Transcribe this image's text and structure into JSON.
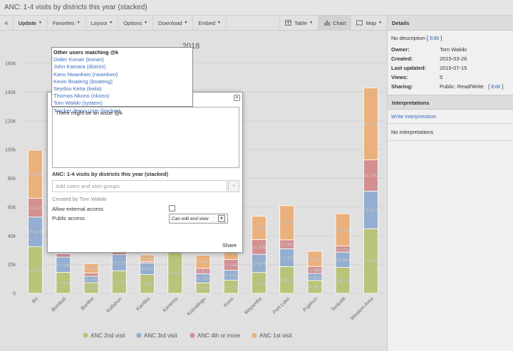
{
  "window": {
    "title": "ANC: 1-4 visits by districts this year (stacked)"
  },
  "toolbar": {
    "collapse_icon": "double-chevron-left-icon",
    "update": "Update",
    "favorites": "Favorites",
    "layout": "Layout",
    "options": "Options",
    "download": "Download",
    "embed": "Embed",
    "table": "Table",
    "chart": "Chart",
    "map": "Map"
  },
  "sidebar": {
    "details_header": "Details",
    "no_description": "No description [",
    "edit_label": "Edit",
    "close_bracket": "]",
    "owner_label": "Owner:",
    "owner_value": "Tom Wakiki",
    "created_label": "Created:",
    "created_value": "2015-03-26",
    "updated_label": "Last updated:",
    "updated_value": "2015-07-15",
    "views_label": "Views:",
    "views_value": "5",
    "sharing_label": "Sharing:",
    "sharing_value": "Public: Read/Write",
    "sharing_open": "[",
    "sharing_edit": "Edit",
    "sharing_close": "]",
    "interpretations_header": "Interpretations",
    "write_interpretation": "Write interpretation",
    "no_interpretations": "No interpretations"
  },
  "dialog": {
    "textarea_value": "There might be an issue @k",
    "title": "ANC: 1-4 visits by districts this year (stacked)",
    "add_users_placeholder": "Add users and user groups",
    "plus": "+",
    "created_by": "Created by Tom Wakiki",
    "allow_external": "Allow external access",
    "public_access": "Public access",
    "public_access_value": "Can edit and view",
    "share": "Share",
    "close": "×"
  },
  "mention": {
    "header": "Other users matching @k",
    "users": [
      "Didier Konan (konan)",
      "John Kamara (district)",
      "Kanu Nwankwo (nwankwo)",
      "Kevin Boateng (boateng)",
      "Seydou Keita (keita)",
      "Thomas Nkono (nkono)",
      "Tom Wakiki (system)",
      "Tracker demo User (tracker)"
    ]
  },
  "chart_data": {
    "type": "bar",
    "stacked": true,
    "title": "2018",
    "ylim": [
      0,
      160000
    ],
    "yticks": [
      "0",
      "20k",
      "40k",
      "60k",
      "80k",
      "100k",
      "120k",
      "140k",
      "160k"
    ],
    "categories": [
      "Bo",
      "Bombali",
      "Bonthe",
      "Kailahun",
      "Kambia",
      "Kenema",
      "Koinadugu",
      "Kono",
      "Moyamba",
      "Port Loko",
      "Pujehun",
      "Tonkolili",
      "Western Area"
    ],
    "series": [
      {
        "name": "ANC 2nd visit",
        "color": "#b9c47a",
        "values": [
          32412,
          14646,
          7422,
          15730,
          13081,
          29470,
          7294,
          9148,
          14518,
          18620,
          8983,
          18047,
          44940
        ],
        "labels": [
          "32 412",
          "14 646",
          "7 422",
          "15 730",
          "13 081",
          "29 470",
          "7 294",
          "9 148",
          "14 518",
          "18 620",
          "8 983",
          "18 047",
          "44 940"
        ]
      },
      {
        "name": "ANC 3rd visit",
        "color": "#93aed0",
        "values": [
          20679,
          10556,
          4449,
          11175,
          8074,
          0,
          6250,
          6876,
          12629,
          12423,
          4856,
          10594,
          26201
        ],
        "labels": [
          "20 679",
          "10 556",
          "4 449",
          "11 175",
          "8 074",
          "",
          "6 250",
          "6 876",
          "12 629",
          "12 423",
          "4 856",
          "10 594",
          "26 201"
        ]
      },
      {
        "name": "ANC 4th or more",
        "color": "#d48f91",
        "values": [
          13134,
          2300,
          2200,
          3500,
          1000,
          0,
          3811,
          7448,
          10306,
          6199,
          4888,
          4275,
          21705
        ],
        "labels": [
          "13 134",
          "",
          "",
          "",
          "",
          "",
          "3 811",
          "7 448",
          "10 306",
          "6 199",
          "4 888",
          "4 275",
          "21 705"
        ]
      },
      {
        "name": "ANC 1st visit",
        "color": "#ebb17c",
        "values": [
          33398,
          0,
          6703,
          0,
          4598,
          0,
          9086,
          9254,
          16150,
          23773,
          10562,
          22505,
          50115
        ],
        "labels": [
          "33 398",
          "",
          "6 703",
          "",
          "4 598",
          "",
          "9 086",
          "9 254",
          "16 150",
          "23 773",
          "10 562",
          "22 505",
          "50 115"
        ]
      }
    ],
    "legend_position": "bottom"
  }
}
